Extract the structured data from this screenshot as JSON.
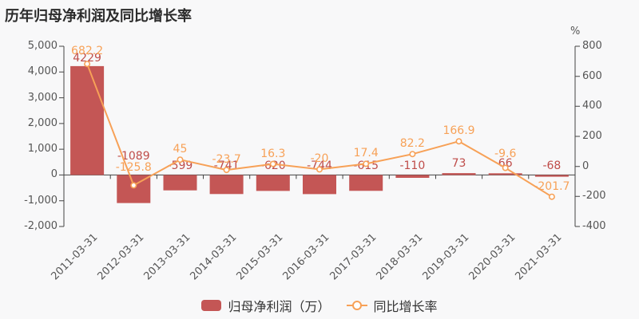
{
  "colors": {
    "bar": "#c45655",
    "bar_label": "#bf4c49",
    "line": "#f7a157",
    "axis": "#444444",
    "tick_text": "#555555",
    "title_text": "#2b2b2b",
    "legend_text": "#333333",
    "background": "#f8f8f9"
  },
  "legend": {
    "items": [
      {
        "label": "归母净利润（万）",
        "type": "bar"
      },
      {
        "label": "同比增长率",
        "type": "line"
      }
    ]
  },
  "chart_data": {
    "type": "bar+line combo, dual y-axis",
    "title": "历年归母净利润及同比增长率",
    "categories": [
      "2011-03-31",
      "2012-03-31",
      "2013-03-31",
      "2014-03-31",
      "2015-03-31",
      "2016-03-31",
      "2017-03-31",
      "2018-03-31",
      "2019-03-31",
      "2020-03-31",
      "2021-03-31"
    ],
    "series": [
      {
        "name": "归母净利润（万）",
        "type": "bar",
        "y_axis": "left",
        "values": [
          4229,
          -1089,
          -599,
          -741,
          -620,
          -744,
          -615,
          -110,
          73,
          66,
          -68
        ],
        "data_labels": [
          "4229",
          "-1089",
          "-599",
          "-741",
          "-620",
          "-744",
          "-615",
          "-110",
          "73",
          "66",
          "-68"
        ]
      },
      {
        "name": "同比增长率",
        "type": "line",
        "y_axis": "right",
        "values": [
          682.2,
          -125.8,
          45,
          -23.7,
          16.3,
          -20,
          17.4,
          82.2,
          166.9,
          -9.6,
          -201.7
        ],
        "data_labels": [
          "682.2",
          "-125.8",
          "45",
          "-23.7",
          "16.3",
          "-20",
          "17.4",
          "82.2",
          "166.9",
          "-9.6",
          "-201.7"
        ]
      }
    ],
    "left_axis": {
      "min": -2000,
      "max": 5000,
      "ticks": [
        "5,000",
        "4,000",
        "3,000",
        "2,000",
        "1,000",
        "0",
        "-1,000",
        "-2,000"
      ]
    },
    "right_axis": {
      "min": -400,
      "max": 800,
      "ticks": [
        "800",
        "600",
        "400",
        "200",
        "0",
        "-200",
        "-400"
      ],
      "unit": "%"
    },
    "legend_position": "bottom",
    "grid": false
  }
}
